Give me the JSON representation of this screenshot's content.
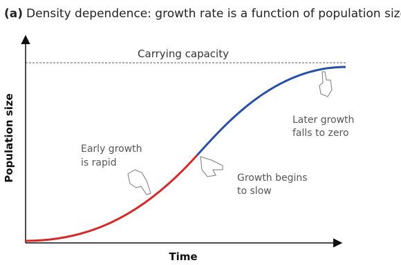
{
  "title": {
    "label": "(a)",
    "text": "Density dependence: growth rate is a function of population size."
  },
  "axes": {
    "y_label": "Population size",
    "x_label": "Time"
  },
  "annotations": {
    "carrying_capacity": "Carrying capacity",
    "early": [
      "Early growth",
      "is rapid"
    ],
    "slowing": [
      "Growth begins",
      "to slow"
    ],
    "later": [
      "Later growth",
      "falls to zero"
    ]
  }
}
